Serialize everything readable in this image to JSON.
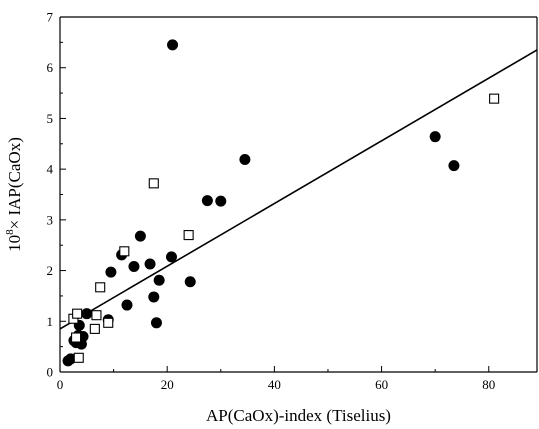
{
  "chart_data": {
    "type": "scatter",
    "xlabel": "AP(CaOx)-index (Tiselius)",
    "ylabel_prefix": "10",
    "ylabel_exponent": "8",
    "ylabel_suffix": "× IAP(CaOx)",
    "xlim": [
      0,
      89
    ],
    "ylim": [
      0,
      7
    ],
    "xticks": [
      0,
      20,
      40,
      60,
      80
    ],
    "yticks": [
      0,
      1,
      2,
      3,
      4,
      5,
      6,
      7
    ],
    "grid": false,
    "series": [
      {
        "marker": "filled-circle",
        "color": "#000000",
        "points": [
          [
            1.5,
            0.22
          ],
          [
            2.0,
            0.26
          ],
          [
            2.6,
            0.62
          ],
          [
            3.0,
            0.58
          ],
          [
            3.4,
            0.72
          ],
          [
            3.6,
            0.92
          ],
          [
            4.0,
            0.55
          ],
          [
            4.3,
            0.7
          ],
          [
            5.0,
            1.15
          ],
          [
            9.0,
            1.03
          ],
          [
            9.5,
            1.97
          ],
          [
            11.5,
            2.31
          ],
          [
            12.5,
            1.32
          ],
          [
            13.8,
            2.08
          ],
          [
            15.0,
            2.68
          ],
          [
            16.8,
            2.13
          ],
          [
            17.5,
            1.48
          ],
          [
            18.0,
            0.97
          ],
          [
            18.5,
            1.81
          ],
          [
            20.8,
            2.27
          ],
          [
            21.0,
            6.45
          ],
          [
            24.3,
            1.78
          ],
          [
            27.5,
            3.38
          ],
          [
            30.0,
            3.37
          ],
          [
            34.5,
            4.19
          ],
          [
            70.0,
            4.64
          ],
          [
            73.5,
            4.07
          ]
        ]
      },
      {
        "marker": "open-square",
        "color": "#000000",
        "points": [
          [
            2.5,
            1.05
          ],
          [
            3.0,
            0.68
          ],
          [
            3.2,
            1.15
          ],
          [
            3.5,
            0.28
          ],
          [
            6.8,
            1.12
          ],
          [
            6.5,
            0.85
          ],
          [
            7.5,
            1.67
          ],
          [
            9.0,
            0.97
          ],
          [
            12.0,
            2.38
          ],
          [
            17.5,
            3.72
          ],
          [
            24.0,
            2.7
          ],
          [
            81.0,
            5.39
          ]
        ]
      }
    ],
    "fit_line": {
      "x": [
        0,
        89
      ],
      "y": [
        0.85,
        6.35
      ]
    }
  }
}
